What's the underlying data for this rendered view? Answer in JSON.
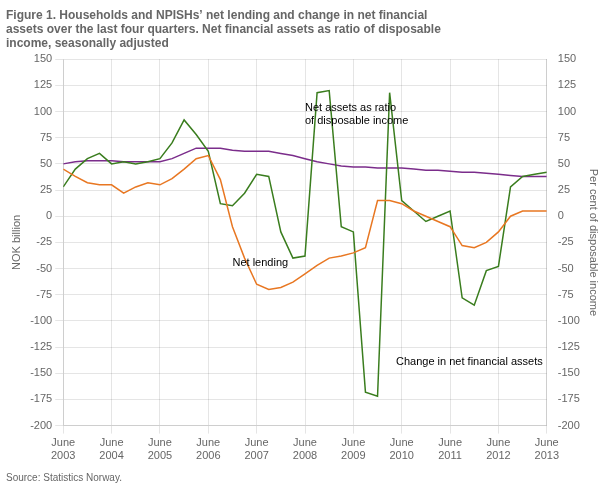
{
  "chart_data": {
    "type": "line",
    "title": "Figure 1. Households and NPISHs’ net lending and change in net financial\nassets over the last four quarters. Net financial assets as ratio of disposable\nincome, seasonally adjusted",
    "subtitle": "Source: Statistics Norway.",
    "ylabel": "NOK billion",
    "y2label": "Per cent of disposable income",
    "categories": [
      "June\n2003",
      null,
      null,
      null,
      "June\n2004",
      null,
      null,
      null,
      "June\n2005",
      null,
      null,
      null,
      "June\n2006",
      null,
      null,
      null,
      "June\n2007",
      null,
      null,
      null,
      "June\n2008",
      null,
      null,
      null,
      "June\n2009",
      null,
      null,
      null,
      "June\n2010",
      null,
      null,
      null,
      "June\n2011",
      null,
      null,
      null,
      "June\n2012",
      null,
      null,
      null,
      "June\n2013"
    ],
    "series": [
      {
        "name": "Net lending",
        "color": "#E87722",
        "values": [
          45,
          38,
          32,
          30,
          30,
          22,
          28,
          32,
          30,
          36,
          45,
          55,
          58,
          35,
          -10,
          -40,
          -65,
          -70,
          -68,
          -63,
          -55,
          -47,
          -40,
          -38,
          -35,
          -30,
          15,
          15,
          12,
          5,
          0,
          -5,
          -10,
          -28,
          -30,
          -25,
          -15,
          0,
          5,
          5,
          5
        ]
      },
      {
        "name": "Change in net financial assets",
        "color": "#3A7D1E",
        "values": [
          28,
          45,
          55,
          60,
          50,
          52,
          50,
          52,
          55,
          70,
          92,
          78,
          62,
          12,
          10,
          22,
          40,
          38,
          -15,
          -40,
          -38,
          118,
          120,
          -10,
          -15,
          -168,
          -172,
          118,
          15,
          5,
          -5,
          0,
          5,
          -78,
          -85,
          -52,
          -48,
          28,
          38,
          40,
          42
        ]
      },
      {
        "name": "Net assets as ratio\nof disposable income",
        "color": "#7B2D8B",
        "values": [
          50,
          52,
          53,
          53,
          53,
          52,
          52,
          52,
          52,
          55,
          60,
          65,
          65,
          65,
          63,
          62,
          62,
          62,
          60,
          58,
          55,
          52,
          50,
          48,
          47,
          47,
          46,
          46,
          46,
          45,
          44,
          44,
          43,
          42,
          42,
          41,
          40,
          39,
          38,
          38,
          38
        ]
      }
    ],
    "annotations": [
      {
        "text": "Net lending",
        "x": 14,
        "y": -48
      },
      {
        "text": "Change in net financial assets",
        "x": 28,
        "y": -142
      },
      {
        "text": "Net assets as ratio\nof disposable income",
        "x": 20,
        "y": 88
      }
    ],
    "ylim": [
      -200,
      150
    ],
    "yticks": [
      -200,
      -175,
      -150,
      -125,
      -100,
      -75,
      -50,
      -25,
      0,
      25,
      50,
      75,
      100,
      125,
      150
    ],
    "y2lim": [
      -200,
      150
    ],
    "y2ticks": [
      -200,
      -175,
      -150,
      -125,
      -100,
      -75,
      -50,
      -25,
      0,
      25,
      50,
      75,
      100,
      125,
      150
    ],
    "grid": true
  }
}
